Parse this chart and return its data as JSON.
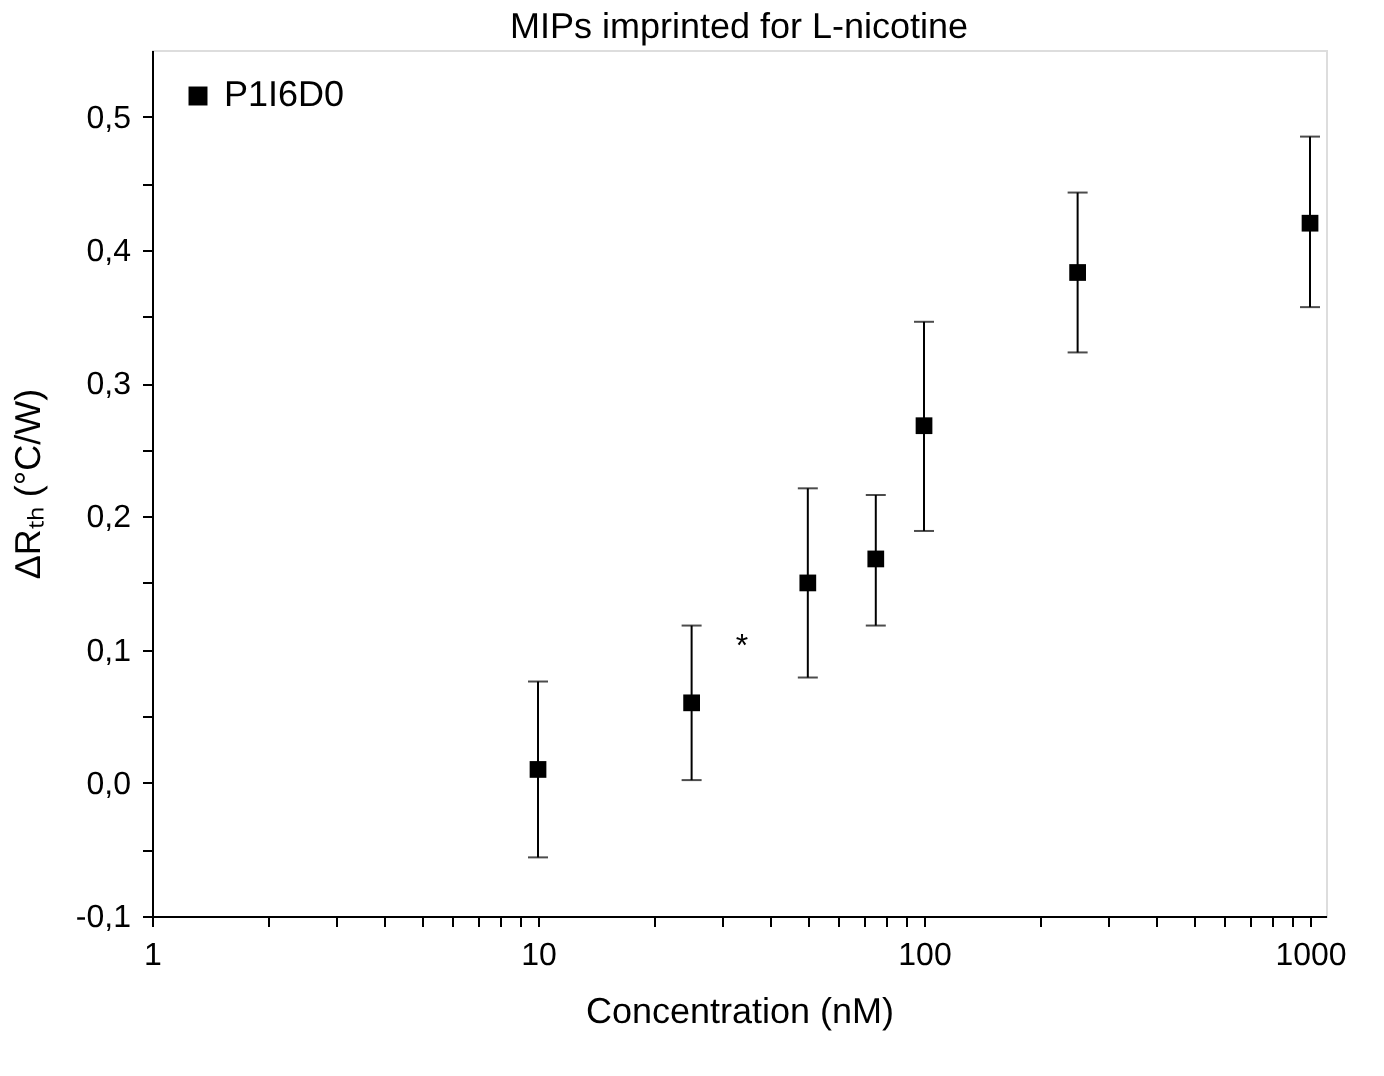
{
  "chart_data": {
    "type": "scatter",
    "title": "MIPs imprinted for L-nicotine",
    "xlabel": "Concentration (nM)",
    "ylabel": "ΔRₜₕ (°C/W)",
    "x": [
      10,
      25,
      50,
      75,
      100,
      250,
      1000
    ],
    "series": [
      {
        "name": "P1I6D0",
        "color": "#000000",
        "values": [
          0.01,
          0.06,
          0.15,
          0.168,
          0.268,
          0.383,
          0.42
        ],
        "errors": [
          [
            -0.056,
            0.076
          ],
          [
            0.002,
            0.118
          ],
          [
            0.079,
            0.221
          ],
          [
            0.118,
            0.216
          ],
          [
            0.189,
            0.346
          ],
          [
            0.323,
            0.443
          ],
          [
            0.357,
            0.485
          ]
        ]
      }
    ],
    "log": "x",
    "xlim": [
      1,
      1100
    ],
    "ylim": [
      -0.1,
      0.55
    ],
    "xticks": [
      1,
      {
        "value": 2,
        "label": null
      },
      {
        "value": 3,
        "label": null
      },
      {
        "value": 4,
        "label": null
      },
      {
        "value": 5,
        "label": null
      },
      {
        "value": 6,
        "label": null
      },
      {
        "value": 7,
        "label": null
      },
      {
        "value": 8,
        "label": null
      },
      {
        "value": 9,
        "label": null
      },
      10,
      {
        "value": 20,
        "label": null
      },
      {
        "value": 30,
        "label": null
      },
      {
        "value": 40,
        "label": null
      },
      {
        "value": 50,
        "label": null
      },
      {
        "value": 60,
        "label": null
      },
      {
        "value": 70,
        "label": null
      },
      {
        "value": 80,
        "label": null
      },
      {
        "value": 90,
        "label": null
      },
      100,
      {
        "value": 200,
        "label": null
      },
      {
        "value": 300,
        "label": null
      },
      {
        "value": 400,
        "label": null
      },
      {
        "value": 500,
        "label": null
      },
      {
        "value": 600,
        "label": null
      },
      {
        "value": 700,
        "label": null
      },
      {
        "value": 800,
        "label": null
      },
      {
        "value": 900,
        "label": null
      },
      1000
    ],
    "yticks": [
      {
        "value": -0.1,
        "label": "-0,1"
      },
      {
        "value": -0.05,
        "label": null
      },
      {
        "value": 0,
        "label": "0,0"
      },
      {
        "value": 0.05,
        "label": null
      },
      {
        "value": 0.1,
        "label": "0,1"
      },
      {
        "value": 0.15,
        "label": null
      },
      {
        "value": 0.2,
        "label": "0,2"
      },
      {
        "value": 0.25,
        "label": null
      },
      {
        "value": 0.3,
        "label": "0,3"
      },
      {
        "value": 0.35,
        "label": null
      },
      {
        "value": 0.4,
        "label": "0,4"
      },
      {
        "value": 0.45,
        "label": null
      },
      {
        "value": 0.5,
        "label": "0,5"
      }
    ],
    "annotations": [
      "*"
    ],
    "marker": "square",
    "legend": "top left",
    "grid": false
  }
}
